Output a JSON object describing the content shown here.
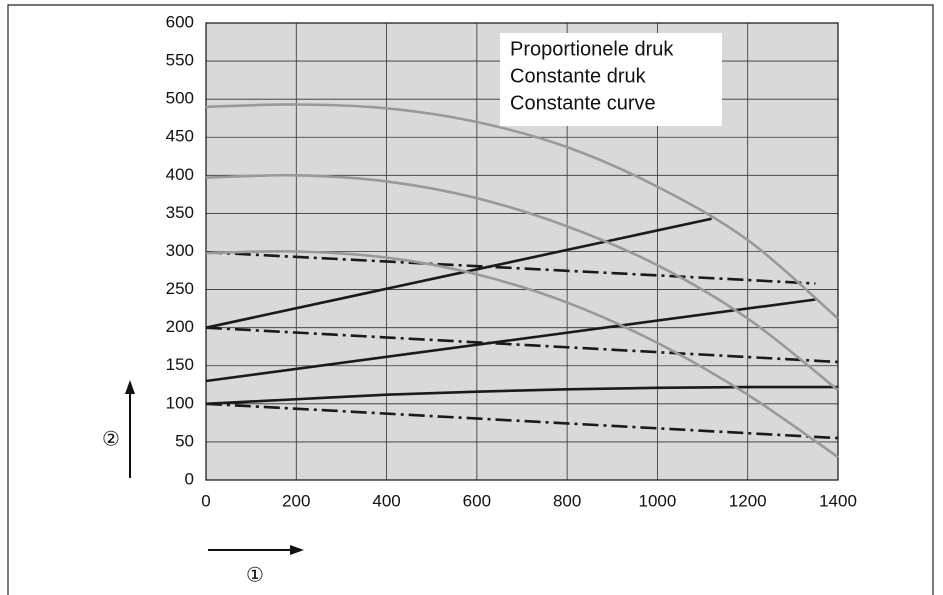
{
  "chart_data": {
    "type": "line",
    "x_label": "①",
    "y_label": "②",
    "xlim": [
      0,
      1400
    ],
    "xticks": [
      0,
      200,
      400,
      600,
      800,
      1000,
      1200,
      1400
    ],
    "ylim": [
      0,
      600
    ],
    "yticks": [
      0,
      50,
      100,
      150,
      200,
      250,
      300,
      350,
      400,
      450,
      500,
      550,
      600
    ],
    "grid": true,
    "legend": "top-right",
    "series": [
      {
        "name": "Proportionele druk",
        "color": "#1a1a1a",
        "dash": "solid",
        "lines": [
          {
            "x": [
              0,
              1120
            ],
            "values": [
              200,
              343
            ]
          },
          {
            "x": [
              0,
              1350
            ],
            "values": [
              130,
              237
            ]
          },
          {
            "x": [
              0,
              200,
              400,
              600,
              800,
              1000,
              1200,
              1400
            ],
            "values": [
              100,
              106,
              112,
              116,
              119,
              121,
              122,
              122
            ]
          }
        ]
      },
      {
        "name": "Constante druk",
        "color": "#1a1a1a",
        "dash": "dash-dot",
        "lines": [
          {
            "x": [
              0,
              1350
            ],
            "values": [
              299,
              258
            ]
          },
          {
            "x": [
              0,
              1400
            ],
            "values": [
              200,
              155
            ]
          },
          {
            "x": [
              0,
              1400
            ],
            "values": [
              100,
              55
            ]
          }
        ]
      },
      {
        "name": "Constante curve",
        "color": "#999999",
        "dash": "solid",
        "lines": [
          {
            "x": [
              0,
              200,
              400,
              600,
              800,
              1000,
              1200,
              1400
            ],
            "values": [
              490,
              493,
              488,
              470,
              437,
              385,
              315,
              212
            ]
          },
          {
            "x": [
              0,
              200,
              400,
              600,
              800,
              1000,
              1200,
              1400
            ],
            "values": [
              397,
              400,
              392,
              370,
              333,
              282,
              212,
              118
            ]
          },
          {
            "x": [
              0,
              200,
              400,
              600,
              800,
              1000,
              1200,
              1400
            ],
            "values": [
              298,
              300,
              292,
              270,
              233,
              180,
              112,
              30
            ]
          }
        ]
      }
    ]
  }
}
